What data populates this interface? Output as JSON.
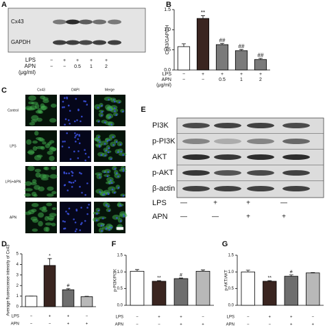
{
  "chart_data": [
    {
      "type": "bar",
      "label": "B",
      "y_label": "Cx43/GAPDH",
      "values": [
        0.58,
        1.28,
        0.63,
        0.48,
        0.26
      ],
      "errors": [
        0.07,
        0.07,
        0.03,
        0.03,
        0.03
      ],
      "colors": [
        "#ffffff",
        "#3a2520",
        "#7a7a7a",
        "#7a7a7a",
        "#7a7a7a"
      ],
      "annotations": [
        null,
        "**",
        "##",
        "##",
        "##"
      ],
      "ylim": [
        0,
        1.5
      ],
      "yticks": [
        {
          "value": 0,
          "label": "0.0"
        },
        0.5,
        {
          "value": 1,
          "label": "1.0"
        },
        1.5
      ],
      "conditions": [
        {
          "name": "LPS",
          "values": [
            "−",
            "+",
            "+",
            "+",
            "+"
          ]
        },
        {
          "name": "APN",
          "values": [
            "−",
            "−",
            "0.5",
            "1",
            "2"
          ]
        }
      ],
      "unit_label": "(μg/ml)"
    },
    {
      "type": "bar",
      "label": "D",
      "y_label": "Average fluorescense intensity of Cx43",
      "values": [
        1.0,
        3.9,
        1.6,
        0.95
      ],
      "errors": [
        0,
        0.65,
        0.1,
        0.03
      ],
      "colors": [
        "#ffffff",
        "#3a2520",
        "#6e6e6e",
        "#b8b8b8"
      ],
      "annotations": [
        null,
        "*",
        "#",
        null
      ],
      "ylim": [
        0,
        5
      ],
      "yticks": [
        0,
        1,
        2,
        3,
        4,
        5
      ],
      "conditions": [
        {
          "name": "LPS",
          "values": [
            "−",
            "+",
            "+",
            "−"
          ]
        },
        {
          "name": "APN",
          "values": [
            "−",
            "−",
            "+",
            "+"
          ]
        }
      ]
    },
    {
      "type": "bar",
      "label": "F",
      "y_label": "p-PI3K/PI3K",
      "values": [
        1.02,
        0.72,
        0.8,
        1.02
      ],
      "errors": [
        0.05,
        0.02,
        0.02,
        0.04
      ],
      "colors": [
        "#ffffff",
        "#3a2520",
        "#6e6e6e",
        "#b8b8b8"
      ],
      "annotations": [
        null,
        "**",
        "#",
        null
      ],
      "ylim": [
        0,
        1.5
      ],
      "yticks": [
        {
          "value": 0,
          "label": "0.0"
        },
        0.5,
        {
          "value": 1,
          "label": "1.0"
        },
        1.5
      ],
      "conditions": [
        {
          "name": "LPS",
          "values": [
            "−",
            "+",
            "+",
            "−"
          ]
        },
        {
          "name": "APN",
          "values": [
            "−",
            "−",
            "+",
            "+"
          ]
        }
      ]
    },
    {
      "type": "bar",
      "label": "G",
      "y_label": "p-AKT/AKT",
      "values": [
        1.0,
        0.72,
        0.87,
        0.97
      ],
      "errors": [
        0.05,
        0.02,
        0.04,
        0.01
      ],
      "colors": [
        "#ffffff",
        "#3a2520",
        "#6e6e6e",
        "#b8b8b8"
      ],
      "annotations": [
        null,
        "**",
        "#",
        null
      ],
      "ylim": [
        0,
        1.5
      ],
      "yticks": [
        {
          "value": 0,
          "label": "0.0"
        },
        0.5,
        {
          "value": 1,
          "label": "1.0"
        },
        1.5
      ],
      "conditions": [
        {
          "name": "LPS",
          "values": [
            "−",
            "+",
            "+",
            "−"
          ]
        },
        {
          "name": "APN",
          "values": [
            "−",
            "−",
            "+",
            "+"
          ]
        }
      ]
    }
  ],
  "panel_a": {
    "label": "A",
    "blots": [
      "Cx43",
      "GAPDH"
    ],
    "conditions": [
      {
        "name": "LPS",
        "values": [
          "−",
          "+",
          "+",
          "+",
          "+"
        ]
      },
      {
        "name": "APN",
        "values": [
          "−",
          "−",
          "0.5",
          "1",
          "2"
        ]
      }
    ],
    "unit_label": "(μg/ml)"
  },
  "panel_c": {
    "label": "C",
    "columns": [
      "Cx43",
      "DAPI",
      "Merge"
    ],
    "rows": [
      "Control",
      "LPS",
      "LPS+APN",
      "APN"
    ]
  },
  "panel_e": {
    "label": "E",
    "blots": [
      "PI3K",
      "p-PI3K",
      "AKT",
      "p-AKT",
      "β-actin"
    ],
    "conditions": [
      {
        "name": "LPS",
        "values": [
          "—",
          "+",
          "+",
          "—"
        ]
      },
      {
        "name": "APN",
        "values": [
          "—",
          "—",
          "+",
          "+"
        ]
      }
    ]
  }
}
